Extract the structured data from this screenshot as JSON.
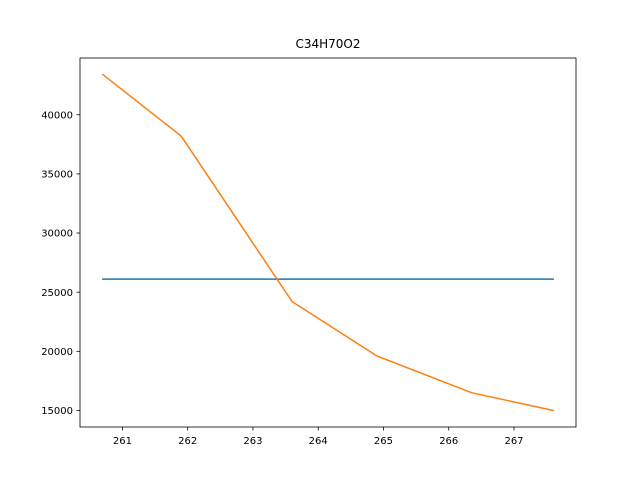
{
  "chart_data": {
    "type": "line",
    "title": "C34H70O2",
    "xlabel": "",
    "ylabel": "",
    "xlim": [
      260.35,
      267.95
    ],
    "ylim": [
      13600,
      44800
    ],
    "xticks": [
      261,
      262,
      263,
      264,
      265,
      266,
      267
    ],
    "xtick_labels": [
      "261",
      "262",
      "263",
      "264",
      "265",
      "266",
      "267"
    ],
    "yticks": [
      15000,
      20000,
      25000,
      30000,
      35000,
      40000
    ],
    "ytick_labels": [
      "15000",
      "20000",
      "25000",
      "30000",
      "35000",
      "40000"
    ],
    "grid": false,
    "series": [
      {
        "color": "#1f77b4",
        "x": [
          260.7,
          267.6
        ],
        "y": [
          26100,
          26100
        ]
      },
      {
        "color": "#ff7f0e",
        "x": [
          260.7,
          261.9,
          263.6,
          264.9,
          266.35,
          267.6
        ],
        "y": [
          43400,
          38200,
          24200,
          19600,
          16500,
          15000
        ]
      }
    ]
  }
}
